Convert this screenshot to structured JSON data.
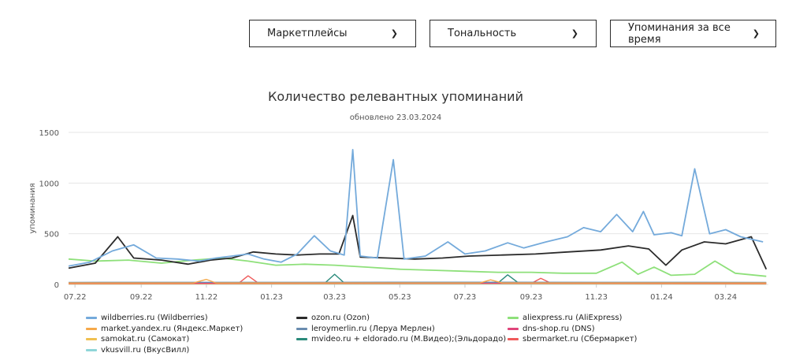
{
  "filters": {
    "marketplaces": "Маркетплейсы",
    "tonality": "Тональность",
    "period": "Упоминания за все время",
    "chevron_icon": "chevron-down-icon"
  },
  "chart_data": {
    "type": "line",
    "title": "Количество релевантных упоминаний",
    "subtitle": "обновлено 23.03.2024",
    "ylabel": "упоминания",
    "xlabel": "",
    "ylim": [
      0,
      1500
    ],
    "yticks": [
      0,
      500,
      1000,
      1500
    ],
    "xticks": [
      "07.22",
      "09.22",
      "11.22",
      "01.23",
      "03.23",
      "05.23",
      "07.23",
      "09.23",
      "11.23",
      "01.24",
      "03.24"
    ],
    "grid": true,
    "legend_position": "bottom",
    "x_range": [
      "2022-06-25",
      "2024-04-10"
    ],
    "series": [
      {
        "name": "wildberries.ru (Wildberries)",
        "color": "#74aadb",
        "points": [
          [
            "2022-06-25",
            180
          ],
          [
            "2022-07-15",
            220
          ],
          [
            "2022-08-05",
            330
          ],
          [
            "2022-08-25",
            390
          ],
          [
            "2022-09-15",
            260
          ],
          [
            "2022-10-05",
            250
          ],
          [
            "2022-10-25",
            230
          ],
          [
            "2022-11-10",
            260
          ],
          [
            "2022-11-25",
            280
          ],
          [
            "2022-12-10",
            300
          ],
          [
            "2022-12-25",
            250
          ],
          [
            "2023-01-10",
            220
          ],
          [
            "2023-01-25",
            300
          ],
          [
            "2023-02-10",
            480
          ],
          [
            "2023-02-25",
            330
          ],
          [
            "2023-03-10",
            290
          ],
          [
            "2023-03-18",
            1330
          ],
          [
            "2023-03-25",
            280
          ],
          [
            "2023-04-10",
            260
          ],
          [
            "2023-04-25",
            1230
          ],
          [
            "2023-05-05",
            250
          ],
          [
            "2023-05-25",
            280
          ],
          [
            "2023-06-15",
            420
          ],
          [
            "2023-07-01",
            300
          ],
          [
            "2023-07-20",
            330
          ],
          [
            "2023-08-10",
            410
          ],
          [
            "2023-08-25",
            360
          ],
          [
            "2023-09-15",
            420
          ],
          [
            "2023-10-05",
            470
          ],
          [
            "2023-10-20",
            560
          ],
          [
            "2023-11-05",
            520
          ],
          [
            "2023-11-20",
            690
          ],
          [
            "2023-12-05",
            520
          ],
          [
            "2023-12-15",
            720
          ],
          [
            "2023-12-25",
            490
          ],
          [
            "2024-01-10",
            510
          ],
          [
            "2024-01-20",
            480
          ],
          [
            "2024-02-01",
            1140
          ],
          [
            "2024-02-15",
            500
          ],
          [
            "2024-03-01",
            540
          ],
          [
            "2024-03-15",
            470
          ],
          [
            "2024-04-05",
            420
          ]
        ]
      },
      {
        "name": "ozon.ru (Ozon)",
        "color": "#2b2b2b",
        "points": [
          [
            "2022-06-25",
            160
          ],
          [
            "2022-07-20",
            210
          ],
          [
            "2022-08-10",
            470
          ],
          [
            "2022-08-25",
            260
          ],
          [
            "2022-09-20",
            240
          ],
          [
            "2022-10-15",
            200
          ],
          [
            "2022-11-05",
            240
          ],
          [
            "2022-11-25",
            260
          ],
          [
            "2022-12-15",
            320
          ],
          [
            "2023-01-05",
            300
          ],
          [
            "2023-01-25",
            290
          ],
          [
            "2023-02-15",
            300
          ],
          [
            "2023-03-05",
            300
          ],
          [
            "2023-03-18",
            680
          ],
          [
            "2023-03-25",
            270
          ],
          [
            "2023-04-20",
            260
          ],
          [
            "2023-05-15",
            250
          ],
          [
            "2023-06-10",
            260
          ],
          [
            "2023-07-05",
            280
          ],
          [
            "2023-08-05",
            290
          ],
          [
            "2023-09-05",
            300
          ],
          [
            "2023-10-05",
            320
          ],
          [
            "2023-11-05",
            340
          ],
          [
            "2023-12-01",
            380
          ],
          [
            "2023-12-20",
            350
          ],
          [
            "2024-01-05",
            190
          ],
          [
            "2024-01-20",
            340
          ],
          [
            "2024-02-10",
            420
          ],
          [
            "2024-03-01",
            400
          ],
          [
            "2024-03-25",
            470
          ],
          [
            "2024-04-08",
            150
          ]
        ]
      },
      {
        "name": "aliexpress.ru (AliExpress)",
        "color": "#8ee07a",
        "points": [
          [
            "2022-06-25",
            250
          ],
          [
            "2022-07-20",
            230
          ],
          [
            "2022-08-20",
            240
          ],
          [
            "2022-09-20",
            210
          ],
          [
            "2022-10-20",
            240
          ],
          [
            "2022-11-15",
            260
          ],
          [
            "2022-12-10",
            230
          ],
          [
            "2023-01-05",
            190
          ],
          [
            "2023-02-01",
            200
          ],
          [
            "2023-03-01",
            190
          ],
          [
            "2023-04-01",
            170
          ],
          [
            "2023-05-01",
            150
          ],
          [
            "2023-06-01",
            140
          ],
          [
            "2023-07-01",
            130
          ],
          [
            "2023-08-01",
            120
          ],
          [
            "2023-09-01",
            120
          ],
          [
            "2023-10-01",
            110
          ],
          [
            "2023-11-01",
            110
          ],
          [
            "2023-11-25",
            220
          ],
          [
            "2023-12-10",
            100
          ],
          [
            "2023-12-25",
            170
          ],
          [
            "2024-01-10",
            90
          ],
          [
            "2024-02-01",
            100
          ],
          [
            "2024-02-20",
            230
          ],
          [
            "2024-03-10",
            110
          ],
          [
            "2024-04-08",
            80
          ]
        ]
      },
      {
        "name": "market.yandex.ru (Яндекс.Маркет)",
        "color": "#f5a94a",
        "points": [
          [
            "2022-06-25",
            15
          ],
          [
            "2022-10-20",
            15
          ],
          [
            "2022-11-01",
            50
          ],
          [
            "2022-11-10",
            15
          ],
          [
            "2023-07-15",
            15
          ],
          [
            "2023-07-25",
            45
          ],
          [
            "2023-08-05",
            15
          ],
          [
            "2024-04-08",
            15
          ]
        ]
      },
      {
        "name": "leroymerlin.ru (Леруа Мерлен)",
        "color": "#6a8caf",
        "points": [
          [
            "2022-06-25",
            20
          ],
          [
            "2023-06-01",
            22
          ],
          [
            "2024-04-08",
            20
          ]
        ]
      },
      {
        "name": "dns-shop.ru (DNS)",
        "color": "#e0457b",
        "points": [
          [
            "2022-06-25",
            10
          ],
          [
            "2023-06-01",
            12
          ],
          [
            "2024-04-08",
            10
          ]
        ]
      },
      {
        "name": "samokat.ru (Самокат)",
        "color": "#f0c050",
        "points": [
          [
            "2022-06-25",
            5
          ],
          [
            "2023-06-01",
            8
          ],
          [
            "2024-04-08",
            5
          ]
        ]
      },
      {
        "name": "mvideo.ru + eldorado.ru (М.Видео);(Эльдорадо)",
        "color": "#2a8a7a",
        "points": [
          [
            "2022-06-25",
            15
          ],
          [
            "2023-02-20",
            15
          ],
          [
            "2023-03-01",
            100
          ],
          [
            "2023-03-10",
            15
          ],
          [
            "2023-08-01",
            15
          ],
          [
            "2023-08-10",
            95
          ],
          [
            "2023-08-20",
            15
          ],
          [
            "2024-04-08",
            15
          ]
        ]
      },
      {
        "name": "sbermarket.ru (Сбермаркет)",
        "color": "#ef5a5a",
        "points": [
          [
            "2022-06-25",
            10
          ],
          [
            "2022-12-01",
            10
          ],
          [
            "2022-12-10",
            85
          ],
          [
            "2022-12-20",
            10
          ],
          [
            "2023-09-01",
            10
          ],
          [
            "2023-09-10",
            60
          ],
          [
            "2023-09-20",
            10
          ],
          [
            "2024-04-08",
            10
          ]
        ]
      },
      {
        "name": "vkusvill.ru (ВкусВилл)",
        "color": "#8fd6d8",
        "points": [
          [
            "2022-06-25",
            3
          ],
          [
            "2024-04-08",
            3
          ]
        ]
      }
    ]
  }
}
